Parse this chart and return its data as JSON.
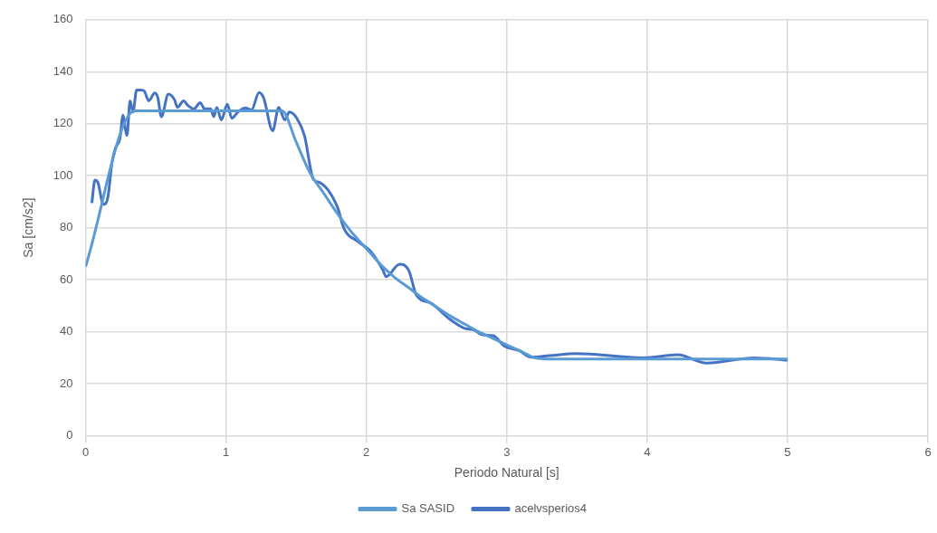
{
  "chart_data": {
    "type": "line",
    "xlabel": "Periodo Natural [s]",
    "ylabel": "Sa [cm/s2]",
    "xlim": [
      0,
      6
    ],
    "xticks": [
      0,
      1,
      2,
      3,
      4,
      5,
      6
    ],
    "ylim": [
      0,
      160
    ],
    "yticks": [
      0,
      20,
      40,
      60,
      80,
      100,
      120,
      140,
      160
    ],
    "grid": true,
    "legend": "bottom",
    "marker": "none",
    "line_style": "solid",
    "series": [
      {
        "name": "Sa SASID",
        "color": "#5b9bd5",
        "x": [
          0,
          0.35,
          1.4,
          1.5,
          1.6,
          1.7,
          1.8,
          1.9,
          2.0,
          2.1,
          2.2,
          2.3,
          2.4,
          2.5,
          2.6,
          2.7,
          2.8,
          2.9,
          3.0,
          3.1,
          3.2,
          3.3,
          5.0
        ],
        "values": [
          65,
          125,
          125,
          113,
          101,
          93,
          85,
          78,
          72,
          66,
          61,
          57,
          53,
          49.5,
          46,
          43,
          40,
          37.5,
          35,
          32.5,
          30,
          29.5,
          29.5
        ]
      },
      {
        "name": "acelvsperios4",
        "color": "#4472c4",
        "x": [
          0.045,
          0.067,
          0.088,
          0.127,
          0.16,
          0.187,
          0.213,
          0.245,
          0.267,
          0.282,
          0.295,
          0.317,
          0.338,
          0.364,
          0.396,
          0.418,
          0.45,
          0.493,
          0.515,
          0.54,
          0.59,
          0.633,
          0.655,
          0.698,
          0.73,
          0.773,
          0.816,
          0.848,
          0.891,
          0.913,
          0.935,
          0.967,
          1.01,
          1.042,
          1.085,
          1.139,
          1.182,
          1.236,
          1.268,
          1.333,
          1.376,
          1.419,
          1.452,
          1.505,
          1.559,
          1.623,
          1.667,
          1.796,
          1.839,
          1.946,
          2.033,
          2.119,
          2.14,
          2.237,
          2.302,
          2.356,
          2.463,
          2.592,
          2.7,
          2.765,
          2.83,
          2.905,
          2.98,
          3.088,
          3.174,
          3.303,
          3.497,
          3.971,
          4.218,
          4.423,
          4.767,
          5.0
        ],
        "values": [
          89.5,
          98.3,
          97.4,
          89,
          92,
          104.6,
          110.7,
          114.3,
          123.3,
          118.5,
          115.5,
          128.8,
          124.5,
          133,
          133,
          132.6,
          128.8,
          131.8,
          130,
          122.7,
          131.4,
          129.3,
          126.3,
          128.8,
          127,
          125.7,
          128.1,
          125.7,
          125.7,
          122.7,
          126.3,
          121.5,
          127.5,
          122.1,
          124.5,
          126.1,
          125.3,
          132,
          130,
          117.3,
          126.3,
          121.5,
          124.5,
          122.1,
          115.5,
          98.6,
          97.4,
          87.7,
          79.9,
          74.5,
          70.8,
          63.6,
          61.2,
          66,
          63.6,
          54.2,
          50.9,
          44.9,
          41.3,
          40.7,
          38.8,
          38.5,
          34.6,
          32.8,
          30.2,
          30.8,
          31.6,
          30,
          31.2,
          28,
          30,
          29.1
        ]
      }
    ]
  }
}
